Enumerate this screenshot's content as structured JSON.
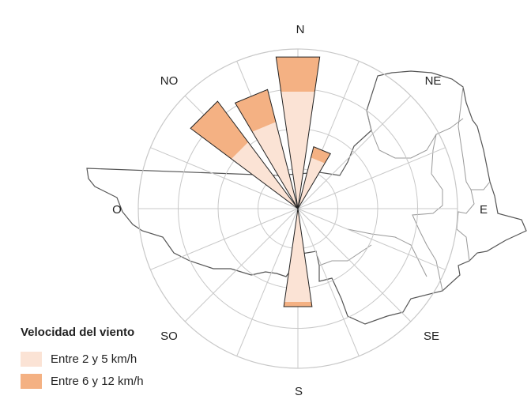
{
  "chart_data": {
    "type": "polar-bar",
    "title": "",
    "directions": [
      "N",
      "NE",
      "E",
      "SE",
      "S",
      "SO",
      "O",
      "NO"
    ],
    "sectors": [
      {
        "direction": "N",
        "angle": 0,
        "low": 0.74,
        "high": 0.96
      },
      {
        "direction": "NNE",
        "angle": 22.5,
        "low": 0.33,
        "high": 0.4
      },
      {
        "direction": "NNO",
        "angle": 337.5,
        "low": 0.56,
        "high": 0.77
      },
      {
        "direction": "NO",
        "angle": 315,
        "low": 0.52,
        "high": 0.84
      },
      {
        "direction": "S",
        "angle": 180,
        "low": 0.59,
        "high": 0.62
      }
    ],
    "rings": 4,
    "legend": {
      "title": "Velocidad del viento",
      "items": [
        {
          "label": "Entre 2 y 5 km/h",
          "color": "#fbe3d5"
        },
        {
          "label": "Entre 6 y 12 km/h",
          "color": "#f4b183"
        }
      ]
    },
    "colors": {
      "low": "#fbe3d5",
      "high": "#f4b183",
      "grid": "#c8c8c8",
      "map": "#555555"
    }
  }
}
